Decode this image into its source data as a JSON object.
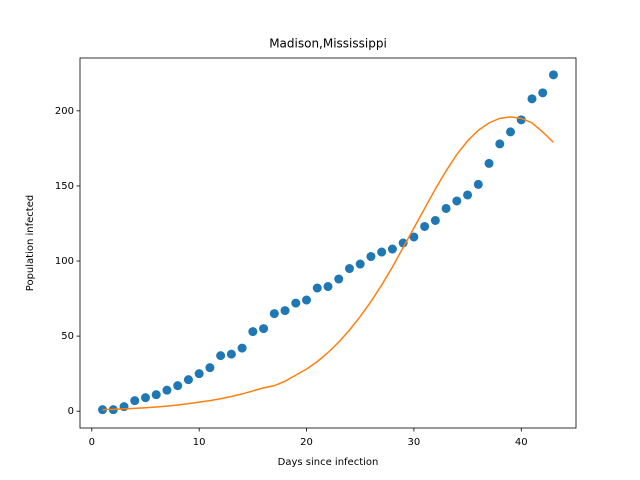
{
  "chart_data": {
    "type": "scatter",
    "title": "Madison,Mississippi",
    "xlabel": "Days since infection",
    "ylabel": "Population infected",
    "x": [
      1,
      2,
      3,
      4,
      5,
      6,
      7,
      8,
      9,
      10,
      11,
      12,
      13,
      14,
      15,
      16,
      17,
      18,
      19,
      20,
      21,
      22,
      23,
      24,
      25,
      26,
      27,
      28,
      29,
      30,
      31,
      32,
      33,
      34,
      35,
      36,
      37,
      38,
      39,
      40,
      41,
      42,
      43
    ],
    "series": [
      {
        "type": "scatter",
        "color": "#1f77b4",
        "values": [
          1,
          1,
          3,
          7,
          9,
          11,
          14,
          17,
          21,
          25,
          29,
          37,
          38,
          42,
          53,
          55,
          65,
          67,
          72,
          74,
          82,
          83,
          88,
          95,
          98,
          103,
          106,
          108,
          112,
          116,
          123,
          127,
          135,
          140,
          144,
          151,
          165,
          178,
          186,
          194,
          208,
          212,
          224
        ]
      },
      {
        "type": "line",
        "color": "#ff7f0e",
        "values": [
          1,
          1.2,
          1.5,
          1.9,
          2.3,
          2.8,
          3.4,
          4.1,
          5,
          6,
          7,
          8.3,
          9.8,
          11.5,
          13.5,
          15.5,
          17,
          20,
          24,
          28,
          33,
          39,
          46,
          54,
          63,
          73,
          84,
          96,
          109,
          122,
          135,
          148,
          160,
          171,
          180,
          187,
          192,
          195,
          196,
          195,
          192,
          186,
          179
        ]
      }
    ],
    "xlim": [
      -1.1,
      45.1
    ],
    "xticks": [
      0,
      10,
      20,
      30,
      40
    ],
    "ylim": [
      -11.2,
      235.2
    ],
    "yticks": [
      0,
      50,
      100,
      150,
      200
    ]
  }
}
